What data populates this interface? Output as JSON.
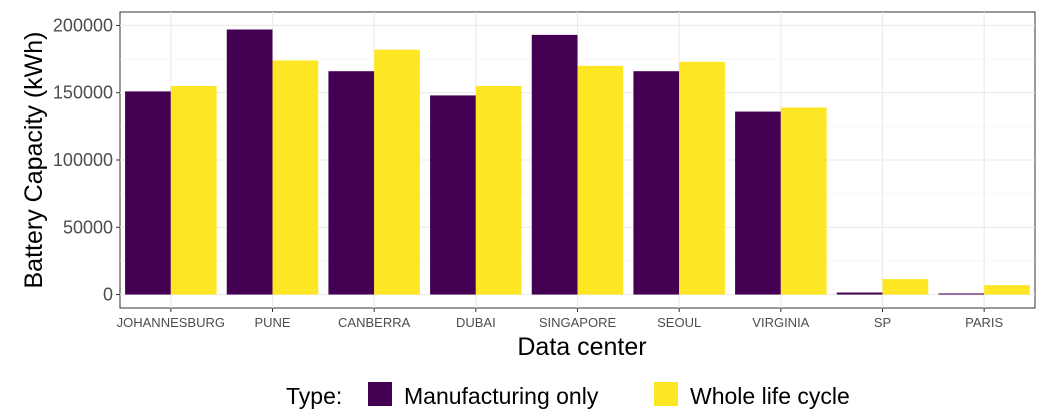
{
  "chart_data": {
    "type": "bar",
    "xlabel": "Data center",
    "ylabel": "Battery Capacity (kWh)",
    "ylim": [
      -10000,
      210000
    ],
    "yticks": [
      0,
      50000,
      100000,
      150000,
      200000
    ],
    "grid": true,
    "legend": {
      "title": "Type:",
      "position": "bottom"
    },
    "categories": [
      "JOHANNESBURG",
      "PUNE",
      "CANBERRA",
      "DUBAI",
      "SINGAPORE",
      "SEOUL",
      "VIRGINIA",
      "SP",
      "PARIS"
    ],
    "series": [
      {
        "name": "Manufacturing only",
        "color": "#440154",
        "values": [
          151000,
          197000,
          166000,
          148000,
          193000,
          166000,
          136000,
          1500,
          800
        ]
      },
      {
        "name": "Whole life cycle",
        "color": "#FDE725",
        "values": [
          155000,
          174000,
          182000,
          155000,
          170000,
          173000,
          139000,
          11500,
          7000
        ]
      }
    ]
  }
}
